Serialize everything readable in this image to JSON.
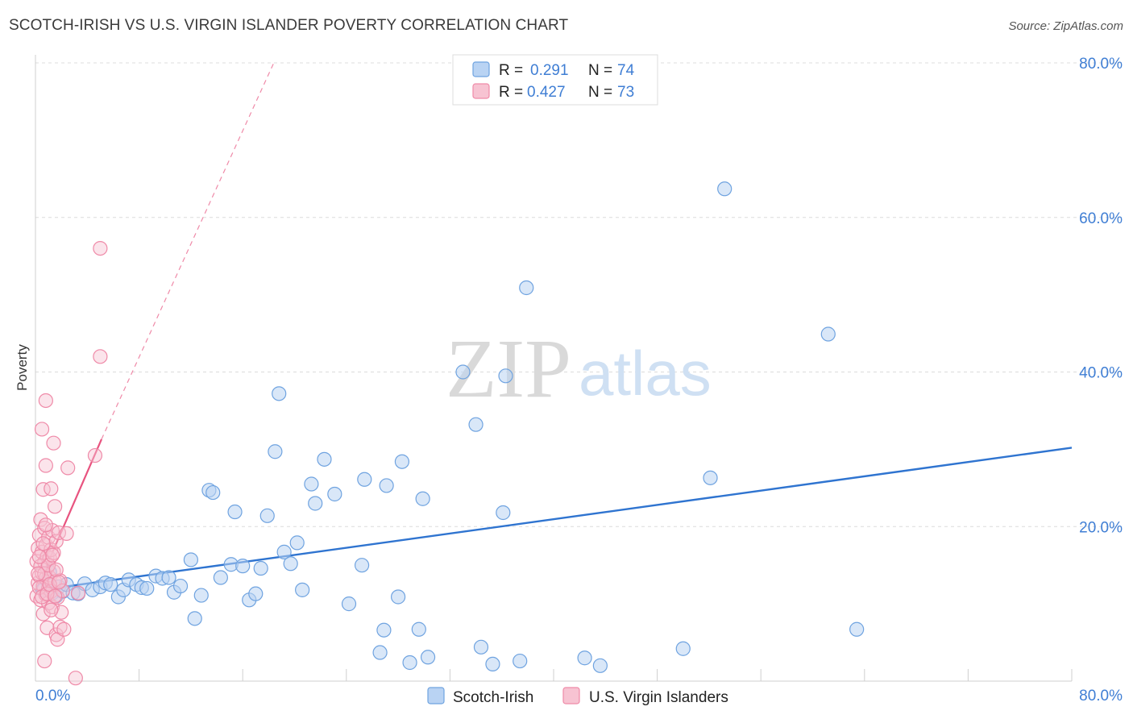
{
  "header": {
    "title": "SCOTCH-IRISH VS U.S. VIRGIN ISLANDER POVERTY CORRELATION CHART",
    "source": "Source: ZipAtlas.com"
  },
  "watermark": {
    "zip": "ZIP",
    "atlas": "atlas"
  },
  "colors": {
    "blue": "#6fa3e0",
    "blue_fill": "#b9d3f3",
    "blue_line": "#2f74d0",
    "pink": "#ef8aa8",
    "pink_fill": "#f7c3d2",
    "pink_line": "#e8537f",
    "axis_text": "#3f7ed4",
    "grid": "#dcdcdc"
  },
  "legend": {
    "rows": [
      {
        "r_label": "R =",
        "r_value": "0.291",
        "n_label": "N =",
        "n_value": "74"
      },
      {
        "r_label": "R =",
        "r_value": "0.427",
        "n_label": "N =",
        "n_value": "73"
      }
    ]
  },
  "bottom_legend": [
    "Scotch-Irish",
    "U.S. Virgin Islanders"
  ],
  "chart_data": {
    "type": "scatter",
    "title": "SCOTCH-IRISH VS U.S. VIRGIN ISLANDER POVERTY CORRELATION CHART",
    "xlabel": "",
    "ylabel": "Poverty",
    "xlim": [
      0,
      80
    ],
    "ylim": [
      0,
      80
    ],
    "x_tick_labels": [
      "0.0%",
      "80.0%"
    ],
    "y_ticks": [
      20,
      40,
      60,
      80
    ],
    "y_tick_labels": [
      "20.0%",
      "40.0%",
      "60.0%",
      "80.0%"
    ],
    "grid": true,
    "legend_position": "top-center",
    "series": [
      {
        "name": "Scotch-Irish",
        "r": 0.291,
        "n": 74,
        "trend": {
          "x": [
            0,
            80
          ],
          "y": [
            11.7,
            30.2
          ],
          "style": "solid"
        },
        "points": [
          [
            0.6,
            11.8
          ],
          [
            0.9,
            13.0
          ],
          [
            1.1,
            14.1
          ],
          [
            1.3,
            11.4
          ],
          [
            1.6,
            11.0
          ],
          [
            1.8,
            12.2
          ],
          [
            2.1,
            11.6
          ],
          [
            2.4,
            12.5
          ],
          [
            2.9,
            11.4
          ],
          [
            3.3,
            11.3
          ],
          [
            3.8,
            12.6
          ],
          [
            4.4,
            11.8
          ],
          [
            5.0,
            12.2
          ],
          [
            5.4,
            12.7
          ],
          [
            5.8,
            12.5
          ],
          [
            6.4,
            10.9
          ],
          [
            6.8,
            11.8
          ],
          [
            7.2,
            13.1
          ],
          [
            7.8,
            12.5
          ],
          [
            8.2,
            12.1
          ],
          [
            8.6,
            12.0
          ],
          [
            9.3,
            13.6
          ],
          [
            9.8,
            13.3
          ],
          [
            10.3,
            13.4
          ],
          [
            10.7,
            11.5
          ],
          [
            11.2,
            12.3
          ],
          [
            12.0,
            15.7
          ],
          [
            12.3,
            8.1
          ],
          [
            12.8,
            11.1
          ],
          [
            13.4,
            24.7
          ],
          [
            13.7,
            24.4
          ],
          [
            14.3,
            13.4
          ],
          [
            15.1,
            15.1
          ],
          [
            15.4,
            21.9
          ],
          [
            16.0,
            14.9
          ],
          [
            16.5,
            10.5
          ],
          [
            17.0,
            11.3
          ],
          [
            17.4,
            14.6
          ],
          [
            17.9,
            21.4
          ],
          [
            18.5,
            29.7
          ],
          [
            18.8,
            37.2
          ],
          [
            19.2,
            16.7
          ],
          [
            19.7,
            15.2
          ],
          [
            20.2,
            17.9
          ],
          [
            20.6,
            11.8
          ],
          [
            21.3,
            25.5
          ],
          [
            21.6,
            23.0
          ],
          [
            22.3,
            28.7
          ],
          [
            23.1,
            24.2
          ],
          [
            24.2,
            10.0
          ],
          [
            25.2,
            15.0
          ],
          [
            25.4,
            26.1
          ],
          [
            26.6,
            3.7
          ],
          [
            26.9,
            6.6
          ],
          [
            27.1,
            25.3
          ],
          [
            28.0,
            10.9
          ],
          [
            28.3,
            28.4
          ],
          [
            28.9,
            2.4
          ],
          [
            29.6,
            6.7
          ],
          [
            29.9,
            23.6
          ],
          [
            30.3,
            3.1
          ],
          [
            33.0,
            40.0
          ],
          [
            34.0,
            33.2
          ],
          [
            34.4,
            4.4
          ],
          [
            35.3,
            2.2
          ],
          [
            36.1,
            21.8
          ],
          [
            36.3,
            39.5
          ],
          [
            37.4,
            2.6
          ],
          [
            37.9,
            50.9
          ],
          [
            42.4,
            3.0
          ],
          [
            43.6,
            2.0
          ],
          [
            50.0,
            4.2
          ],
          [
            52.1,
            26.3
          ],
          [
            53.2,
            63.7
          ],
          [
            61.2,
            44.9
          ],
          [
            63.4,
            6.7
          ]
        ]
      },
      {
        "name": "U.S. Virgin Islanders",
        "r": 0.427,
        "n": 73,
        "trend": {
          "x": [
            0,
            5.1
          ],
          "y": [
            11.6,
            31.3
          ],
          "style": "solid",
          "extension_to": [
            18.4,
            80
          ],
          "extension_style": "dashed"
        },
        "points": [
          [
            0.1,
            11.0
          ],
          [
            0.1,
            15.5
          ],
          [
            0.2,
            12.7
          ],
          [
            0.2,
            17.2
          ],
          [
            0.3,
            13.6
          ],
          [
            0.3,
            18.9
          ],
          [
            0.4,
            10.5
          ],
          [
            0.4,
            20.9
          ],
          [
            0.5,
            14.0
          ],
          [
            0.5,
            16.7
          ],
          [
            0.5,
            32.6
          ],
          [
            0.6,
            8.7
          ],
          [
            0.6,
            12.3
          ],
          [
            0.6,
            24.8
          ],
          [
            0.7,
            15.4
          ],
          [
            0.7,
            19.8
          ],
          [
            0.7,
            2.6
          ],
          [
            0.8,
            11.2
          ],
          [
            0.8,
            13.3
          ],
          [
            0.8,
            17.6
          ],
          [
            0.8,
            27.9
          ],
          [
            0.8,
            36.3
          ],
          [
            0.9,
            6.9
          ],
          [
            0.9,
            14.6
          ],
          [
            0.9,
            16.1
          ],
          [
            1.0,
            12.0
          ],
          [
            1.0,
            18.6
          ],
          [
            1.0,
            10.1
          ],
          [
            1.1,
            13.4
          ],
          [
            1.1,
            15.9
          ],
          [
            1.2,
            11.6
          ],
          [
            1.2,
            17.0
          ],
          [
            1.2,
            24.9
          ],
          [
            1.3,
            19.5
          ],
          [
            1.3,
            9.6
          ],
          [
            1.4,
            14.2
          ],
          [
            1.4,
            16.6
          ],
          [
            1.4,
            30.8
          ],
          [
            1.5,
            12.9
          ],
          [
            1.5,
            22.6
          ],
          [
            1.6,
            18.1
          ],
          [
            1.6,
            6.0
          ],
          [
            1.7,
            5.4
          ],
          [
            1.7,
            10.8
          ],
          [
            1.8,
            19.2
          ],
          [
            1.9,
            13.0
          ],
          [
            1.9,
            7.0
          ],
          [
            2.0,
            8.9
          ],
          [
            2.1,
            11.7
          ],
          [
            2.2,
            6.7
          ],
          [
            2.4,
            19.1
          ],
          [
            2.5,
            27.6
          ],
          [
            3.1,
            0.4
          ],
          [
            3.3,
            11.4
          ],
          [
            4.6,
            29.2
          ],
          [
            5.0,
            56.0
          ],
          [
            5.0,
            42.0
          ],
          [
            0.3,
            12.1
          ],
          [
            0.4,
            14.9
          ],
          [
            0.5,
            10.9
          ],
          [
            0.6,
            17.8
          ],
          [
            0.7,
            13.9
          ],
          [
            0.9,
            11.3
          ],
          [
            1.0,
            15.0
          ],
          [
            1.1,
            12.5
          ],
          [
            1.3,
            16.3
          ],
          [
            1.5,
            11.0
          ],
          [
            1.6,
            14.4
          ],
          [
            1.8,
            12.8
          ],
          [
            0.2,
            13.9
          ],
          [
            0.3,
            16.1
          ],
          [
            0.8,
            20.2
          ],
          [
            1.2,
            9.2
          ]
        ]
      }
    ]
  }
}
